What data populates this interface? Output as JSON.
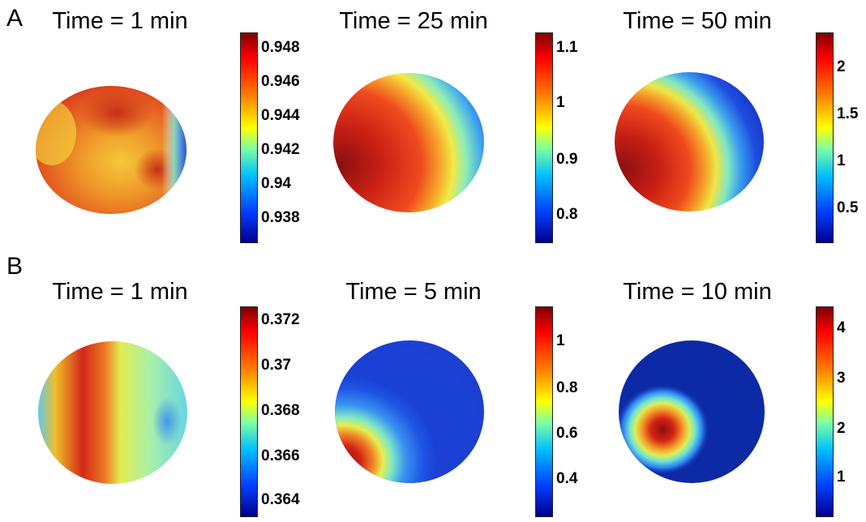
{
  "rows": [
    {
      "label": "A",
      "panels": [
        {
          "title": "Time = 1 min",
          "colorbar": {
            "ticks": [
              "0.948",
              "0.946",
              "0.944",
              "0.942",
              "0.94",
              "0.938"
            ]
          }
        },
        {
          "title": "Time = 25 min",
          "colorbar": {
            "ticks": [
              "1.1",
              "1",
              "0.9",
              "0.8"
            ]
          }
        },
        {
          "title": "Time = 50 min",
          "colorbar": {
            "ticks": [
              "2",
              "1.5",
              "1",
              "0.5"
            ]
          }
        }
      ]
    },
    {
      "label": "B",
      "panels": [
        {
          "title": "Time = 1 min",
          "colorbar": {
            "ticks": [
              "0.372",
              "0.37",
              "0.368",
              "0.366",
              "0.364"
            ]
          }
        },
        {
          "title": "Time = 5 min",
          "colorbar": {
            "ticks": [
              "1",
              "0.8",
              "0.6",
              "0.4"
            ]
          }
        },
        {
          "title": "Time = 10 min",
          "colorbar": {
            "ticks": [
              "4",
              "3",
              "2",
              "1"
            ]
          }
        }
      ]
    }
  ],
  "colormap": "jet"
}
